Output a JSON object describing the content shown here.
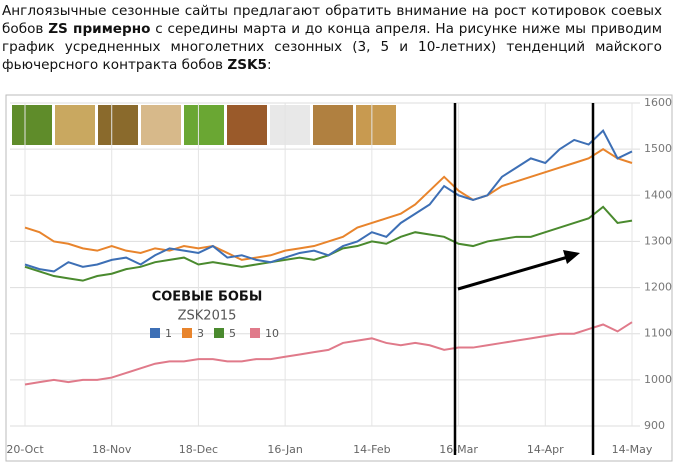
{
  "paragraph": {
    "parts": [
      {
        "text": "Англоязычные сезонные сайты предлагают обратить внимание на рост котировок соевых бобов ",
        "bold": false
      },
      {
        "text": "ZS примерно",
        "bold": true
      },
      {
        "text": " с середины марта и до конца апреля. На рисунке ниже мы приводим график усредненных многолетних сезонных (3, 5 и 10-летних) тенденций майского фьючерсного контракта бобов ",
        "bold": false
      },
      {
        "text": "ZSK5",
        "bold": true
      },
      {
        "text": ":",
        "bold": false
      }
    ]
  },
  "chart_data": {
    "type": "line",
    "title": "СОЕВЫЕ БОБЫ",
    "subtitle": "ZSK2015",
    "categories": [
      "20-Oct",
      null,
      null,
      null,
      null,
      null,
      "18-Nov",
      null,
      null,
      null,
      null,
      null,
      "18-Dec",
      null,
      null,
      null,
      null,
      null,
      "16-Jan",
      null,
      null,
      null,
      null,
      null,
      "14-Feb",
      null,
      null,
      null,
      null,
      null,
      "16-Mar",
      null,
      null,
      null,
      null,
      null,
      "14-Apr",
      null,
      null,
      null,
      null,
      null,
      "14-May"
    ],
    "ylim": [
      900,
      1600
    ],
    "yticks": [
      900,
      1000,
      1100,
      1200,
      1300,
      1400,
      1500,
      1600
    ],
    "grid": true,
    "series": [
      {
        "name": "1",
        "color": "#3d6fb5",
        "values": [
          1250,
          1240,
          1235,
          1255,
          1245,
          1250,
          1260,
          1265,
          1250,
          1270,
          1285,
          1280,
          1275,
          1290,
          1265,
          1270,
          1260,
          1255,
          1265,
          1275,
          1280,
          1270,
          1290,
          1300,
          1320,
          1310,
          1340,
          1360,
          1380,
          1420,
          1400,
          1390,
          1400,
          1440,
          1460,
          1480,
          1470,
          1500,
          1520,
          1510,
          1540,
          1480,
          1495
        ]
      },
      {
        "name": "3",
        "color": "#e8842c",
        "values": [
          1330,
          1320,
          1300,
          1295,
          1285,
          1280,
          1290,
          1280,
          1275,
          1285,
          1280,
          1290,
          1285,
          1290,
          1275,
          1260,
          1265,
          1270,
          1280,
          1285,
          1290,
          1300,
          1310,
          1330,
          1340,
          1350,
          1360,
          1380,
          1410,
          1440,
          1410,
          1390,
          1400,
          1420,
          1430,
          1440,
          1450,
          1460,
          1470,
          1480,
          1500,
          1480,
          1470
        ]
      },
      {
        "name": "5",
        "color": "#4a8a2e",
        "values": [
          1245,
          1235,
          1225,
          1220,
          1215,
          1225,
          1230,
          1240,
          1245,
          1255,
          1260,
          1265,
          1250,
          1255,
          1250,
          1245,
          1250,
          1255,
          1260,
          1265,
          1260,
          1270,
          1285,
          1290,
          1300,
          1295,
          1310,
          1320,
          1315,
          1310,
          1295,
          1290,
          1300,
          1305,
          1310,
          1310,
          1320,
          1330,
          1340,
          1350,
          1375,
          1340,
          1345
        ]
      },
      {
        "name": "10",
        "color": "#e07a8a",
        "values": [
          990,
          995,
          1000,
          995,
          1000,
          1000,
          1005,
          1015,
          1025,
          1035,
          1040,
          1040,
          1045,
          1045,
          1040,
          1040,
          1045,
          1045,
          1050,
          1055,
          1060,
          1065,
          1080,
          1085,
          1090,
          1080,
          1075,
          1080,
          1075,
          1065,
          1070,
          1070,
          1075,
          1080,
          1085,
          1090,
          1095,
          1100,
          1100,
          1110,
          1120,
          1105,
          1125
        ]
      }
    ]
  }
}
